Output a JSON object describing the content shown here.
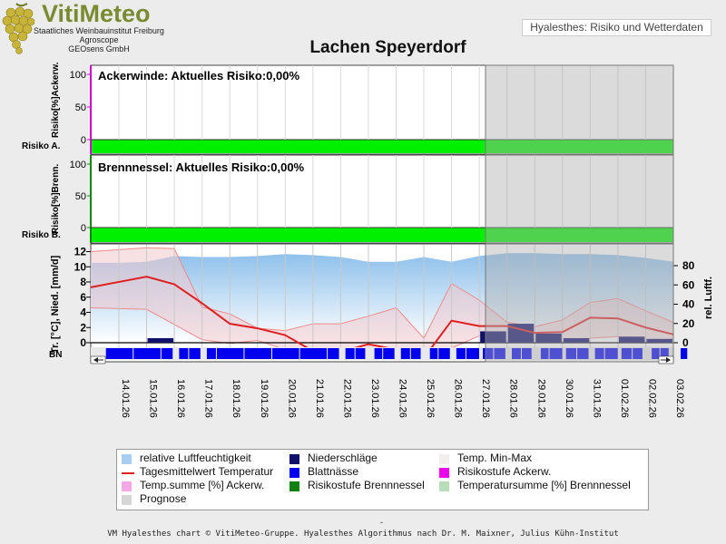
{
  "header": {
    "brand": "VitiMeteo",
    "line1": "Staatliches Weinbauinstitut Freiburg",
    "line2": "Agroscope",
    "line3": "GEOsens GmbH",
    "chip": "Hyalesthes: Risiko und Wetterdaten"
  },
  "title": "Lachen Speyerdorf",
  "panels": {
    "ackerwinde_text": "Ackerwinde: Aktuelles Risiko:0,00%",
    "brennnessel_text": "Brennnessel: Aktuelles Risiko:0,00%",
    "ackerwinde_ylabel": "Risiko[%]Ackerw.",
    "brennnessel_ylabel": "Risiko[%]Brenn.",
    "risiko_a_label": "Risiko A.",
    "risiko_b_label": "Risiko B.",
    "weather_ylabel_left": "Tr. [°C], Nied. [mm/d]",
    "weather_ylabel_right": "rel. Luftf.",
    "bn_label": "BN"
  },
  "footer": "VM Hyalesthes chart © VitiMeteo-Gruppe. Hyalesthes Algorithmus nach Dr. M. Maixner, Julius Kühn-Institut",
  "footer_dash": "-",
  "legend": [
    {
      "label": "relative Luftfeuchtigkeit",
      "color": "#a8cdee"
    },
    {
      "label": "Niederschläge",
      "color": "#10106a"
    },
    {
      "label": "Temp. Min-Max",
      "color": "#f3eeee"
    },
    {
      "label": "Tagesmittelwert Temperatur",
      "color": "#e02020"
    },
    {
      "label": "Blattnässe",
      "color": "#0000ee"
    },
    {
      "label": "Risikostufe Ackerw.",
      "color": "#ee00ee"
    },
    {
      "label": "Temp.summe [%] Ackerw.",
      "color": "#f3a8e8"
    },
    {
      "label": "Risikostufe Brennnessel",
      "color": "#108010"
    },
    {
      "label": "Temperatursumme [%] Brennnessel",
      "color": "#b8ddb8"
    },
    {
      "label": "Prognose",
      "color": "#d6d6d6"
    }
  ],
  "chart_data": {
    "type": "line",
    "x": [
      "14.01.26",
      "15.01.26",
      "16.01.26",
      "17.01.26",
      "18.01.26",
      "19.01.26",
      "20.01.26",
      "21.01.26",
      "22.01.26",
      "23.01.26",
      "24.01.26",
      "25.01.26",
      "26.01.26",
      "27.01.26",
      "28.01.26",
      "29.01.26",
      "30.01.26",
      "31.01.26",
      "01.02.26",
      "02.02.26",
      "03.02.26"
    ],
    "forecast_from": "27.01.26",
    "risk_ackerwinde": {
      "ylim": [
        0,
        100
      ],
      "yticks": [
        0,
        50,
        100
      ],
      "values": [
        0,
        0,
        0,
        0,
        0,
        0,
        0,
        0,
        0,
        0,
        0,
        0,
        0,
        0,
        0,
        0,
        0,
        0,
        0,
        0,
        0
      ]
    },
    "risk_brennnessel": {
      "ylim": [
        0,
        100
      ],
      "yticks": [
        0,
        50,
        100
      ],
      "values": [
        0,
        0,
        0,
        0,
        0,
        0,
        0,
        0,
        0,
        0,
        0,
        0,
        0,
        0,
        0,
        0,
        0,
        0,
        0,
        0,
        0
      ]
    },
    "weather": {
      "ylim_left": [
        -2,
        13
      ],
      "yticks_left": [
        0,
        2,
        4,
        6,
        8,
        10,
        12
      ],
      "ylim_right": [
        0,
        95
      ],
      "yticks_right": [
        0,
        20,
        40,
        60,
        80
      ],
      "series": [
        {
          "name": "Tagesmittelwert Temperatur",
          "values": [
            7.3,
            8.7,
            7.7,
            5.2,
            2.5,
            1.9,
            1.0,
            -1.1,
            -1.2,
            -0.2,
            -0.9,
            -2.0,
            2.9,
            2.2,
            2.2,
            1.3,
            1.4,
            3.3,
            3.2,
            2.0,
            1.1
          ]
        },
        {
          "name": "Temp. Max",
          "values": [
            12.0,
            12.5,
            12.4,
            4.7,
            3.8,
            1.9,
            1.6,
            2.5,
            2.5,
            3.5,
            4.6,
            0.6,
            7.8,
            5.6,
            2.7,
            2.1,
            3.0,
            5.3,
            5.8,
            4.2,
            2.7
          ]
        },
        {
          "name": "Temp. Min",
          "values": [
            4.6,
            4.4,
            2.4,
            0.4,
            -0.1,
            0.3,
            -0.9,
            -1.3,
            -1.6,
            -1.7,
            -1.7,
            -1.8,
            -0.7,
            0.9,
            0.3,
            0.4,
            0.2,
            0.6,
            0.8,
            0.2,
            0.5
          ]
        },
        {
          "name": "relative Luftfeuchtigkeit",
          "values": [
            83,
            84,
            90,
            89,
            89,
            90,
            92,
            91,
            89,
            84,
            84,
            89,
            84,
            90,
            93,
            93,
            92,
            92,
            91,
            88,
            84
          ]
        },
        {
          "name": "Niederschläge",
          "values": [
            0.0,
            0.6,
            0.0,
            0.0,
            0.0,
            0.0,
            0.0,
            0.0,
            0.0,
            0.0,
            0.0,
            0.0,
            0.0,
            1.5,
            2.5,
            1.2,
            0.6,
            0.0,
            0.8,
            0.5,
            0.0
          ]
        },
        {
          "name": "Blattnässe",
          "values": [
            1,
            1,
            0.8,
            0.8,
            1,
            1,
            1,
            1,
            0.8,
            0.7,
            0.8,
            0.7,
            0.8,
            0.9,
            0.8,
            0.7,
            0.9,
            0.8,
            0.9,
            0.7,
            0.6
          ]
        }
      ]
    }
  }
}
